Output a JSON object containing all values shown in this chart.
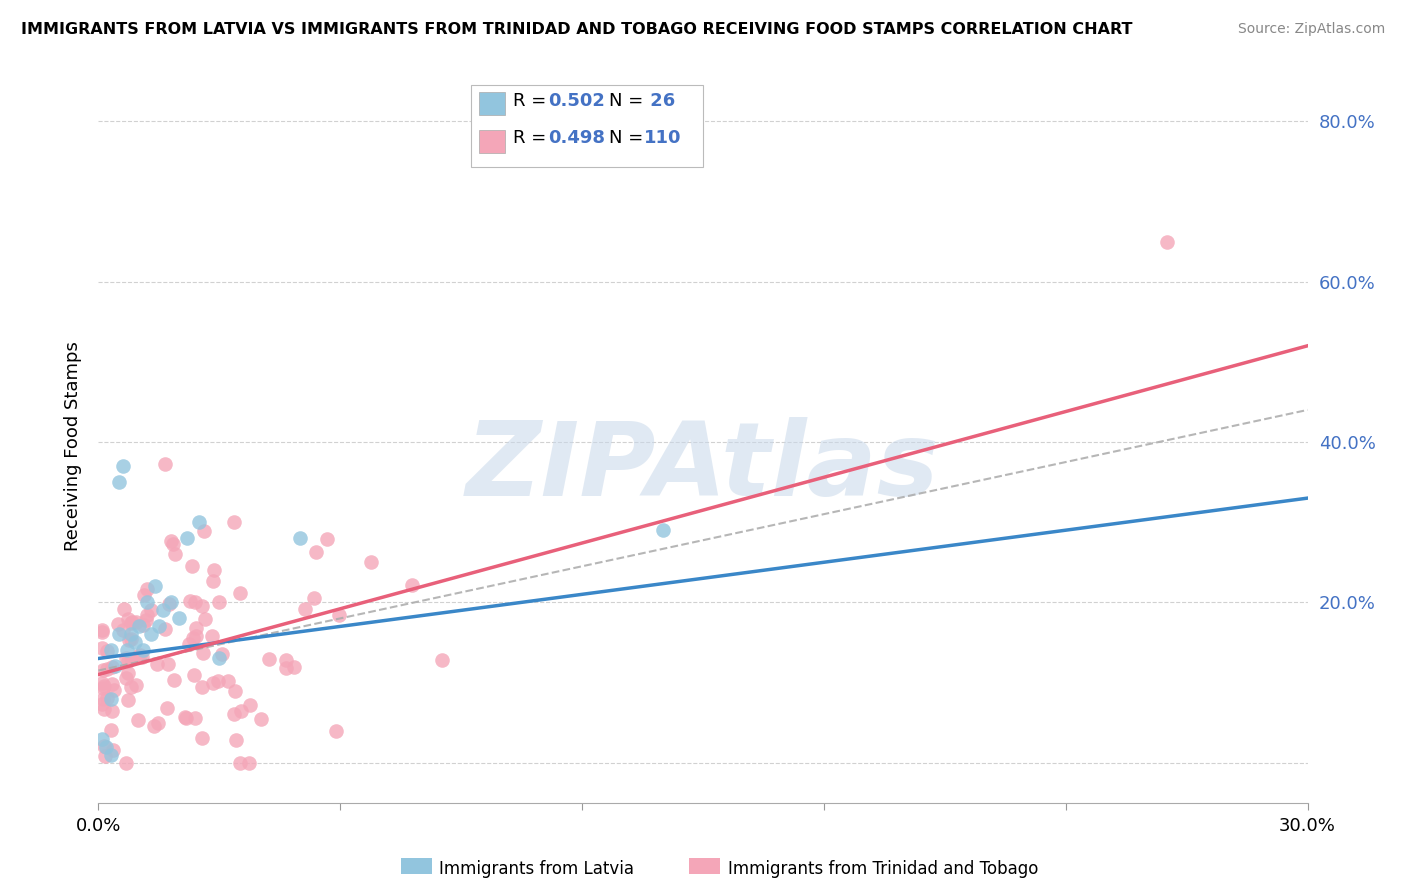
{
  "title": "IMMIGRANTS FROM LATVIA VS IMMIGRANTS FROM TRINIDAD AND TOBAGO RECEIVING FOOD STAMPS CORRELATION CHART",
  "source": "Source: ZipAtlas.com",
  "ylabel": "Receiving Food Stamps",
  "legend_label1": "Immigrants from Latvia",
  "legend_label2": "Immigrants from Trinidad and Tobago",
  "blue_color": "#92c5de",
  "pink_color": "#f4a6b8",
  "blue_line_color": "#3a87c8",
  "pink_line_color": "#e8607a",
  "dashed_line_color": "#aaaaaa",
  "accent_color": "#4472C4",
  "watermark_color": "#c8d8ea",
  "xlim": [
    0.0,
    0.3
  ],
  "ylim": [
    -0.05,
    0.84
  ],
  "ytick_vals": [
    0.0,
    0.2,
    0.4,
    0.6,
    0.8
  ],
  "ytick_labels_right": [
    "",
    "20.0%",
    "40.0%",
    "60.0%",
    "80.0%"
  ],
  "grid_color": "#cccccc",
  "blue_trend": [
    0.13,
    0.33
  ],
  "pink_trend": [
    0.11,
    0.52
  ],
  "dashed_trend": [
    0.115,
    0.44
  ]
}
